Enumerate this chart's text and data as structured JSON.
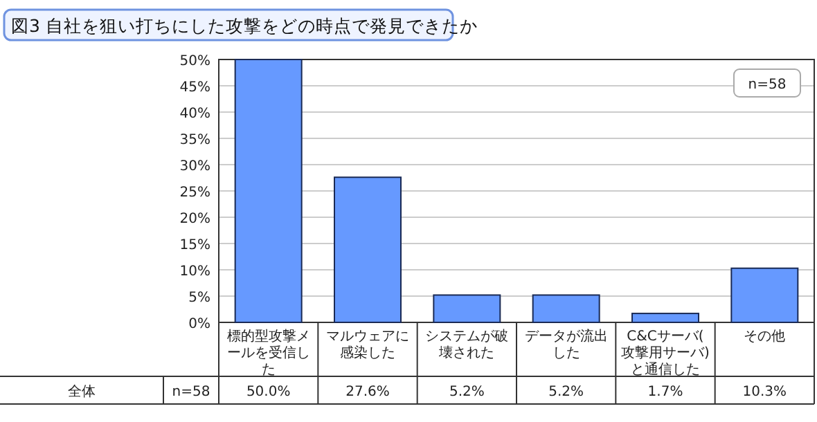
{
  "chart_data": {
    "type": "bar",
    "title": "図3 自社を狙い打ちにした攻撃をどの時点で発見できたか",
    "categories": [
      "標的型攻撃メールを受信した",
      "マルウェアに感染した",
      "システムが破壊された",
      "データが流出した",
      "C&Cサーバ(攻撃用サーバ)と通信した",
      "その他"
    ],
    "values": [
      50.0,
      27.6,
      5.2,
      5.2,
      1.7,
      10.3
    ],
    "value_labels": [
      "50.0%",
      "27.6%",
      "5.2%",
      "5.2%",
      "1.7%",
      "10.3%"
    ],
    "color": "#6699ff",
    "ylim": [
      0,
      50
    ],
    "yticks": [
      {
        "value": 0,
        "label": "0%"
      },
      {
        "value": 5,
        "label": "5%"
      },
      {
        "value": 10,
        "label": "10%"
      },
      {
        "value": 15,
        "label": "15%"
      },
      {
        "value": 20,
        "label": "20%"
      },
      {
        "value": 25,
        "label": "25%"
      },
      {
        "value": 30,
        "label": "30%"
      },
      {
        "value": 35,
        "label": "35%"
      },
      {
        "value": 40,
        "label": "40%"
      },
      {
        "value": 45,
        "label": "45%"
      },
      {
        "value": 50,
        "label": "50%"
      }
    ],
    "grid": "y",
    "annotations": [
      "n=58",
      "全体",
      "n=58"
    ]
  }
}
